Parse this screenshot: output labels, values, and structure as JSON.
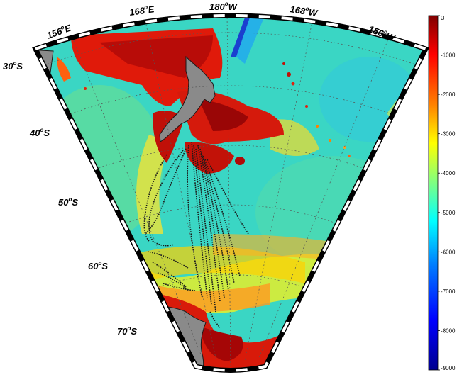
{
  "map": {
    "lat_labels": [
      {
        "deg": "30",
        "hemi": "S"
      },
      {
        "deg": "40",
        "hemi": "S"
      },
      {
        "deg": "50",
        "hemi": "S"
      },
      {
        "deg": "60",
        "hemi": "S"
      },
      {
        "deg": "70",
        "hemi": "S"
      }
    ],
    "lon_labels": [
      {
        "deg": "156",
        "hemi": "E"
      },
      {
        "deg": "168",
        "hemi": "E"
      },
      {
        "deg": "180",
        "hemi": "W"
      },
      {
        "deg": "168",
        "hemi": "W"
      },
      {
        "deg": "156",
        "hemi": "W"
      }
    ],
    "degree_symbol": "o"
  },
  "colorbar": {
    "ticks": [
      "0",
      "-1000",
      "-2000",
      "-3000",
      "-4000",
      "-5000",
      "-6000",
      "-7000",
      "-8000",
      "-9000"
    ],
    "range": [
      -9000,
      0
    ],
    "colors": [
      "#7f0000",
      "#ff0000",
      "#ff8000",
      "#ffff00",
      "#80ff80",
      "#00ffff",
      "#0080ff",
      "#0000ff",
      "#00008f"
    ]
  },
  "colors": {
    "land": "#8a8a8a",
    "tracks": "#1a1a1a",
    "frame": "#000000",
    "ocean_base": "#33d9c7"
  }
}
